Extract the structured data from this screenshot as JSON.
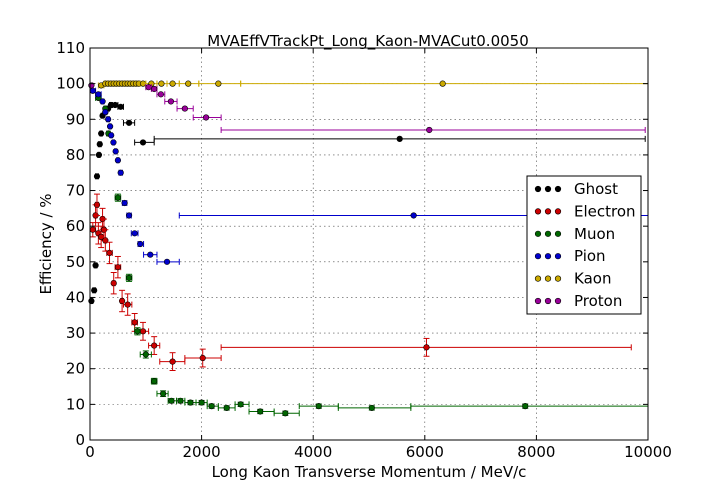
{
  "chart_data": {
    "type": "scatter",
    "title": "MVAEffVTrackPt_Long_Kaon-MVACut0.0050",
    "xlabel": "Long Kaon Transverse Momentum / MeV/c",
    "ylabel": "Efficiency / %",
    "xlim": [
      0,
      10000
    ],
    "ylim": [
      0,
      110
    ],
    "x_ticks": [
      "0",
      "2000",
      "4000",
      "6000",
      "8000",
      "10000"
    ],
    "y_ticks": [
      "0",
      "10",
      "20",
      "30",
      "40",
      "50",
      "60",
      "70",
      "80",
      "90",
      "100",
      "110"
    ],
    "grid": true,
    "legend_position": "right",
    "series": [
      {
        "name": "Ghost",
        "color": "#000000",
        "points": [
          {
            "x": 25,
            "y": 39,
            "xlo": 0,
            "xhi": 50
          },
          {
            "x": 75,
            "y": 42,
            "xlo": 50,
            "xhi": 100
          },
          {
            "x": 100,
            "y": 49,
            "xlo": 75,
            "xhi": 125
          },
          {
            "x": 125,
            "y": 74,
            "xlo": 100,
            "xhi": 150
          },
          {
            "x": 160,
            "y": 80,
            "xlo": 140,
            "xhi": 180
          },
          {
            "x": 175,
            "y": 83,
            "xlo": 150,
            "xhi": 200
          },
          {
            "x": 200,
            "y": 86,
            "xlo": 180,
            "xhi": 220
          },
          {
            "x": 225,
            "y": 91,
            "xlo": 200,
            "xhi": 250
          },
          {
            "x": 275,
            "y": 92,
            "xlo": 250,
            "xhi": 300
          },
          {
            "x": 325,
            "y": 93,
            "xlo": 300,
            "xhi": 350
          },
          {
            "x": 375,
            "y": 94,
            "xlo": 350,
            "xhi": 400
          },
          {
            "x": 450,
            "y": 94,
            "xlo": 400,
            "xhi": 500
          },
          {
            "x": 550,
            "y": 93.5,
            "xlo": 500,
            "xhi": 600
          },
          {
            "x": 700,
            "y": 89,
            "xlo": 600,
            "xhi": 800
          },
          {
            "x": 950,
            "y": 83.5,
            "xlo": 800,
            "xhi": 1150
          },
          {
            "x": 5550,
            "y": 84.5,
            "xlo": 1150,
            "xhi": 9950
          }
        ]
      },
      {
        "name": "Electron",
        "color": "#cc0000",
        "points": [
          {
            "x": 50,
            "y": 59,
            "xlo": 0,
            "xhi": 100,
            "yerr": 2
          },
          {
            "x": 100,
            "y": 63,
            "xlo": 75,
            "xhi": 125,
            "yerr": 3
          },
          {
            "x": 125,
            "y": 66,
            "xlo": 100,
            "xhi": 150,
            "yerr": 3
          },
          {
            "x": 150,
            "y": 58,
            "xlo": 125,
            "xhi": 175,
            "yerr": 3
          },
          {
            "x": 200,
            "y": 57,
            "xlo": 175,
            "xhi": 225,
            "yerr": 3
          },
          {
            "x": 225,
            "y": 62,
            "xlo": 200,
            "xhi": 250,
            "yerr": 3
          },
          {
            "x": 250,
            "y": 59,
            "xlo": 225,
            "xhi": 275,
            "yerr": 3
          },
          {
            "x": 275,
            "y": 56,
            "xlo": 250,
            "xhi": 300,
            "yerr": 3
          },
          {
            "x": 350,
            "y": 52.5,
            "xlo": 300,
            "xhi": 400,
            "yerr": 3
          },
          {
            "x": 425,
            "y": 44,
            "xlo": 400,
            "xhi": 450,
            "yerr": 3
          },
          {
            "x": 500,
            "y": 48.5,
            "xlo": 450,
            "xhi": 550,
            "yerr": 3
          },
          {
            "x": 575,
            "y": 39,
            "xlo": 550,
            "xhi": 600,
            "yerr": 3
          },
          {
            "x": 675,
            "y": 38,
            "xlo": 600,
            "xhi": 750,
            "yerr": 3
          },
          {
            "x": 800,
            "y": 33,
            "xlo": 750,
            "xhi": 850,
            "yerr": 2.5
          },
          {
            "x": 950,
            "y": 30.5,
            "xlo": 850,
            "xhi": 1050,
            "yerr": 2.5
          },
          {
            "x": 1150,
            "y": 26.5,
            "xlo": 1050,
            "xhi": 1250,
            "yerr": 2.5
          },
          {
            "x": 1480,
            "y": 22,
            "xlo": 1250,
            "xhi": 1700,
            "yerr": 2.5
          },
          {
            "x": 2020,
            "y": 23,
            "xlo": 1700,
            "xhi": 2350,
            "yerr": 2.5
          },
          {
            "x": 6030,
            "y": 26,
            "xlo": 2350,
            "xhi": 9700,
            "yerr": 2.5
          }
        ]
      },
      {
        "name": "Muon",
        "color": "#006600",
        "points": [
          {
            "x": 150,
            "y": 96,
            "xlo": 100,
            "xhi": 200
          },
          {
            "x": 275,
            "y": 93,
            "xlo": 250,
            "xhi": 300
          },
          {
            "x": 330,
            "y": 86,
            "xlo": 300,
            "xhi": 360
          },
          {
            "x": 500,
            "y": 68,
            "xlo": 450,
            "xhi": 550,
            "yerr": 1
          },
          {
            "x": 700,
            "y": 45.5,
            "xlo": 650,
            "xhi": 750,
            "yerr": 1
          },
          {
            "x": 850,
            "y": 30.5,
            "xlo": 800,
            "xhi": 900,
            "yerr": 1
          },
          {
            "x": 1000,
            "y": 24,
            "xlo": 900,
            "xhi": 1100,
            "yerr": 1
          },
          {
            "x": 1150,
            "y": 16.5,
            "xlo": 1100,
            "xhi": 1200,
            "yerr": 0.8
          },
          {
            "x": 1310,
            "y": 13,
            "xlo": 1200,
            "xhi": 1400,
            "yerr": 0.8
          },
          {
            "x": 1460,
            "y": 11,
            "xlo": 1400,
            "xhi": 1550,
            "yerr": 0.6
          },
          {
            "x": 1620,
            "y": 11,
            "xlo": 1550,
            "xhi": 1700,
            "yerr": 0.6
          },
          {
            "x": 1800,
            "y": 10.5,
            "xlo": 1700,
            "xhi": 1900,
            "yerr": 0.6
          },
          {
            "x": 2000,
            "y": 10.5,
            "xlo": 1900,
            "xhi": 2100,
            "yerr": 0.6
          },
          {
            "x": 2180,
            "y": 9.5,
            "xlo": 2100,
            "xhi": 2300,
            "yerr": 0.6
          },
          {
            "x": 2450,
            "y": 9,
            "xlo": 2300,
            "xhi": 2600,
            "yerr": 0.6
          },
          {
            "x": 2700,
            "y": 10,
            "xlo": 2600,
            "xhi": 2850,
            "yerr": 0.6
          },
          {
            "x": 3050,
            "y": 8,
            "xlo": 2850,
            "xhi": 3300,
            "yerr": 0.6
          },
          {
            "x": 3500,
            "y": 7.5,
            "xlo": 3300,
            "xhi": 3750,
            "yerr": 0.6
          },
          {
            "x": 4100,
            "y": 9.5,
            "xlo": 3750,
            "xhi": 4450,
            "yerr": 0.6
          },
          {
            "x": 5050,
            "y": 9,
            "xlo": 4450,
            "xhi": 5750,
            "yerr": 0.6
          },
          {
            "x": 7800,
            "y": 9.5,
            "xlo": 5750,
            "xhi": 10000,
            "yerr": 0.6
          }
        ]
      },
      {
        "name": "Pion",
        "color": "#0000cc",
        "points": [
          {
            "x": 50,
            "y": 98,
            "xlo": 0,
            "xhi": 100
          },
          {
            "x": 150,
            "y": 97,
            "xlo": 100,
            "xhi": 200
          },
          {
            "x": 225,
            "y": 95,
            "xlo": 200,
            "xhi": 250
          },
          {
            "x": 275,
            "y": 92,
            "xlo": 250,
            "xhi": 300
          },
          {
            "x": 325,
            "y": 90,
            "xlo": 300,
            "xhi": 350
          },
          {
            "x": 360,
            "y": 88,
            "xlo": 340,
            "xhi": 380
          },
          {
            "x": 380,
            "y": 85.5,
            "xlo": 360,
            "xhi": 400
          },
          {
            "x": 420,
            "y": 83.5,
            "xlo": 400,
            "xhi": 440
          },
          {
            "x": 460,
            "y": 81,
            "xlo": 440,
            "xhi": 480
          },
          {
            "x": 500,
            "y": 78.5,
            "xlo": 480,
            "xhi": 520
          },
          {
            "x": 550,
            "y": 75,
            "xlo": 520,
            "xhi": 580
          },
          {
            "x": 620,
            "y": 66.5,
            "xlo": 580,
            "xhi": 660
          },
          {
            "x": 700,
            "y": 63,
            "xlo": 660,
            "xhi": 740
          },
          {
            "x": 800,
            "y": 58,
            "xlo": 740,
            "xhi": 860
          },
          {
            "x": 900,
            "y": 55,
            "xlo": 860,
            "xhi": 960
          },
          {
            "x": 1080,
            "y": 52,
            "xlo": 960,
            "xhi": 1200
          },
          {
            "x": 1380,
            "y": 50,
            "xlo": 1200,
            "xhi": 1600
          },
          {
            "x": 5800,
            "y": 63,
            "xlo": 1600,
            "xhi": 10000
          }
        ]
      },
      {
        "name": "Kaon",
        "color": "#ccaa00",
        "points": [
          {
            "x": 200,
            "y": 99.5,
            "xlo": 150,
            "xhi": 250
          },
          {
            "x": 275,
            "y": 100,
            "xlo": 250,
            "xhi": 300
          },
          {
            "x": 325,
            "y": 100,
            "xlo": 300,
            "xhi": 350
          },
          {
            "x": 375,
            "y": 100,
            "xlo": 350,
            "xhi": 400
          },
          {
            "x": 425,
            "y": 100,
            "xlo": 400,
            "xhi": 450
          },
          {
            "x": 475,
            "y": 100,
            "xlo": 450,
            "xhi": 500
          },
          {
            "x": 525,
            "y": 100,
            "xlo": 500,
            "xhi": 550
          },
          {
            "x": 575,
            "y": 100,
            "xlo": 550,
            "xhi": 600
          },
          {
            "x": 625,
            "y": 100,
            "xlo": 600,
            "xhi": 650
          },
          {
            "x": 675,
            "y": 100,
            "xlo": 650,
            "xhi": 700
          },
          {
            "x": 725,
            "y": 100,
            "xlo": 700,
            "xhi": 750
          },
          {
            "x": 775,
            "y": 100,
            "xlo": 750,
            "xhi": 800
          },
          {
            "x": 825,
            "y": 100,
            "xlo": 800,
            "xhi": 850
          },
          {
            "x": 875,
            "y": 100,
            "xlo": 850,
            "xhi": 900
          },
          {
            "x": 950,
            "y": 100,
            "xlo": 900,
            "xhi": 1000
          },
          {
            "x": 1100,
            "y": 100,
            "xlo": 1000,
            "xhi": 1200
          },
          {
            "x": 1280,
            "y": 100,
            "xlo": 1200,
            "xhi": 1380
          },
          {
            "x": 1480,
            "y": 100,
            "xlo": 1380,
            "xhi": 1600
          },
          {
            "x": 1760,
            "y": 100,
            "xlo": 1600,
            "xhi": 1950
          },
          {
            "x": 2300,
            "y": 100,
            "xlo": 1950,
            "xhi": 2700
          },
          {
            "x": 6320,
            "y": 100,
            "xlo": 2700,
            "xhi": 10000
          }
        ]
      },
      {
        "name": "Proton",
        "color": "#990099",
        "points": [
          {
            "x": 25,
            "y": 99.5,
            "xlo": 0,
            "xhi": 50
          },
          {
            "x": 1050,
            "y": 99,
            "xlo": 1000,
            "xhi": 1100
          },
          {
            "x": 1150,
            "y": 98.5,
            "xlo": 1100,
            "xhi": 1200
          },
          {
            "x": 1270,
            "y": 97,
            "xlo": 1200,
            "xhi": 1340
          },
          {
            "x": 1450,
            "y": 95,
            "xlo": 1340,
            "xhi": 1560
          },
          {
            "x": 1700,
            "y": 93,
            "xlo": 1560,
            "xhi": 1850
          },
          {
            "x": 2080,
            "y": 90.5,
            "xlo": 1850,
            "xhi": 2350
          },
          {
            "x": 6080,
            "y": 87,
            "xlo": 2350,
            "xhi": 9950
          }
        ]
      }
    ]
  }
}
